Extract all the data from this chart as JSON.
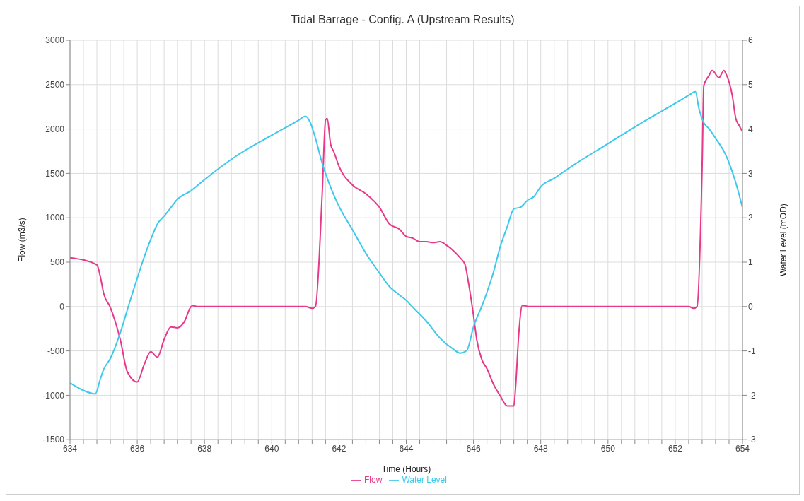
{
  "chart_data": {
    "type": "line",
    "title": "Tidal Barrage - Config. A (Upstream Results)",
    "xlabel": "Time (Hours)",
    "ylabel": "Flow (m3/s)",
    "y2label": "Water Level (mOD)",
    "xlim": [
      634,
      654
    ],
    "xticks": [
      634,
      {
        "value": 634.4,
        "label": null
      },
      {
        "value": 634.8,
        "label": null
      },
      {
        "value": 635.2,
        "label": null
      },
      {
        "value": 635.6,
        "label": null
      },
      636,
      {
        "value": 636.4,
        "label": null
      },
      {
        "value": 636.8,
        "label": null
      },
      {
        "value": 637.2,
        "label": null
      },
      {
        "value": 637.6,
        "label": null
      },
      638,
      {
        "value": 638.4,
        "label": null
      },
      {
        "value": 638.8,
        "label": null
      },
      {
        "value": 639.2,
        "label": null
      },
      {
        "value": 639.6,
        "label": null
      },
      640,
      {
        "value": 640.4,
        "label": null
      },
      {
        "value": 640.8,
        "label": null
      },
      {
        "value": 641.2,
        "label": null
      },
      {
        "value": 641.6,
        "label": null
      },
      642,
      {
        "value": 642.4,
        "label": null
      },
      {
        "value": 642.8,
        "label": null
      },
      {
        "value": 643.2,
        "label": null
      },
      {
        "value": 643.6,
        "label": null
      },
      644,
      {
        "value": 644.4,
        "label": null
      },
      {
        "value": 644.8,
        "label": null
      },
      {
        "value": 645.2,
        "label": null
      },
      {
        "value": 645.6,
        "label": null
      },
      646,
      {
        "value": 646.4,
        "label": null
      },
      {
        "value": 646.8,
        "label": null
      },
      {
        "value": 647.2,
        "label": null
      },
      {
        "value": 647.6,
        "label": null
      },
      648,
      {
        "value": 648.4,
        "label": null
      },
      {
        "value": 648.8,
        "label": null
      },
      {
        "value": 649.2,
        "label": null
      },
      {
        "value": 649.6,
        "label": null
      },
      650,
      {
        "value": 650.4,
        "label": null
      },
      {
        "value": 650.8,
        "label": null
      },
      {
        "value": 651.2,
        "label": null
      },
      {
        "value": 651.6,
        "label": null
      },
      652,
      {
        "value": 652.4,
        "label": null
      },
      {
        "value": 652.8,
        "label": null
      },
      {
        "value": 653.2,
        "label": null
      },
      {
        "value": 653.6,
        "label": null
      },
      654
    ],
    "ylim": [
      -1500,
      3000
    ],
    "yticks": [
      -1500,
      -1000,
      -500,
      0,
      500,
      1000,
      1500,
      2000,
      2500,
      3000
    ],
    "y2lim": [
      -3,
      6
    ],
    "y2ticks": [
      -3,
      -2,
      -1,
      0,
      1,
      2,
      3,
      4,
      5,
      6
    ],
    "grid": true,
    "legend": "bottom",
    "marker": "none",
    "line_style": "solid",
    "series": [
      {
        "name": "Flow",
        "color": "#e8388a",
        "x": [
          634,
          634.8,
          634.9,
          635.0,
          635.2,
          635.5,
          635.7,
          636.0,
          636.2,
          636.4,
          636.6,
          636.8,
          637.0,
          637.2,
          637.4,
          637.6,
          637.65,
          637.8,
          641.0,
          641.2,
          641.3,
          641.5,
          641.6,
          641.65,
          641.75,
          641.85,
          642.0,
          642.4,
          642.8,
          643.2,
          643.5,
          643.8,
          644.0,
          644.2,
          644.4,
          644.6,
          644.8,
          645.0,
          645.2,
          645.4,
          645.6,
          645.75,
          645.85,
          646.0,
          646.1,
          646.25,
          646.4,
          646.6,
          646.8,
          647.0,
          647.2,
          647.25,
          647.35,
          647.45,
          647.5,
          647.65,
          652.4,
          652.55,
          652.65,
          652.8,
          652.85,
          653.0,
          653.1,
          653.3,
          653.45,
          653.5,
          653.7,
          653.8,
          653.9,
          654
        ],
        "values": [
          550,
          470,
          340,
          150,
          -10,
          -380,
          -730,
          -850,
          -660,
          -510,
          -570,
          -370,
          -230,
          -240,
          -170,
          0,
          10,
          0,
          0,
          -20,
          0,
          1270,
          2100,
          2120,
          1830,
          1740,
          1580,
          1370,
          1270,
          1120,
          930,
          870,
          790,
          770,
          730,
          730,
          720,
          730,
          690,
          630,
          550,
          470,
          270,
          -100,
          -380,
          -600,
          -700,
          -880,
          -1010,
          -1120,
          -1120,
          -920,
          -290,
          10,
          10,
          0,
          0,
          -20,
          0,
          1580,
          2490,
          2600,
          2660,
          2580,
          2660,
          2630,
          2370,
          2120,
          2040,
          1970
        ]
      },
      {
        "name": "Water Level",
        "color": "#3ec8ec",
        "axis": "y2",
        "x": [
          634,
          634.4,
          634.75,
          634.9,
          635.0,
          635.2,
          635.5,
          635.75,
          636.0,
          636.2,
          636.4,
          636.6,
          636.8,
          637.0,
          637.2,
          637.6,
          638.0,
          639,
          640,
          640.8,
          641.0,
          641.15,
          641.3,
          641.5,
          641.7,
          641.9,
          642.0,
          642.4,
          642.8,
          643.2,
          643.5,
          643.8,
          644.0,
          644.2,
          644.6,
          645.0,
          645.4,
          645.6,
          645.8,
          646.0,
          646.3,
          646.6,
          646.8,
          647.0,
          647.2,
          647.4,
          647.6,
          647.8,
          648.0,
          648.4,
          649,
          650,
          651,
          652,
          652.4,
          652.6,
          652.7,
          652.85,
          653.0,
          653.2,
          653.5,
          653.8,
          654
        ],
        "values": [
          -1.72,
          -1.89,
          -1.97,
          -1.64,
          -1.42,
          -1.17,
          -0.58,
          0.04,
          0.64,
          1.1,
          1.51,
          1.86,
          2.04,
          2.23,
          2.42,
          2.61,
          2.86,
          3.42,
          3.86,
          4.2,
          4.29,
          4.14,
          3.79,
          3.23,
          2.79,
          2.42,
          2.26,
          1.73,
          1.2,
          0.76,
          0.45,
          0.26,
          0.14,
          -0.02,
          -0.33,
          -0.71,
          -0.96,
          -1.05,
          -0.99,
          -0.46,
          0.11,
          0.79,
          1.36,
          1.79,
          2.2,
          2.24,
          2.39,
          2.48,
          2.7,
          2.89,
          3.2,
          3.67,
          4.14,
          4.58,
          4.76,
          4.84,
          4.48,
          4.14,
          4.01,
          3.79,
          3.42,
          2.79,
          2.23
        ]
      }
    ]
  }
}
